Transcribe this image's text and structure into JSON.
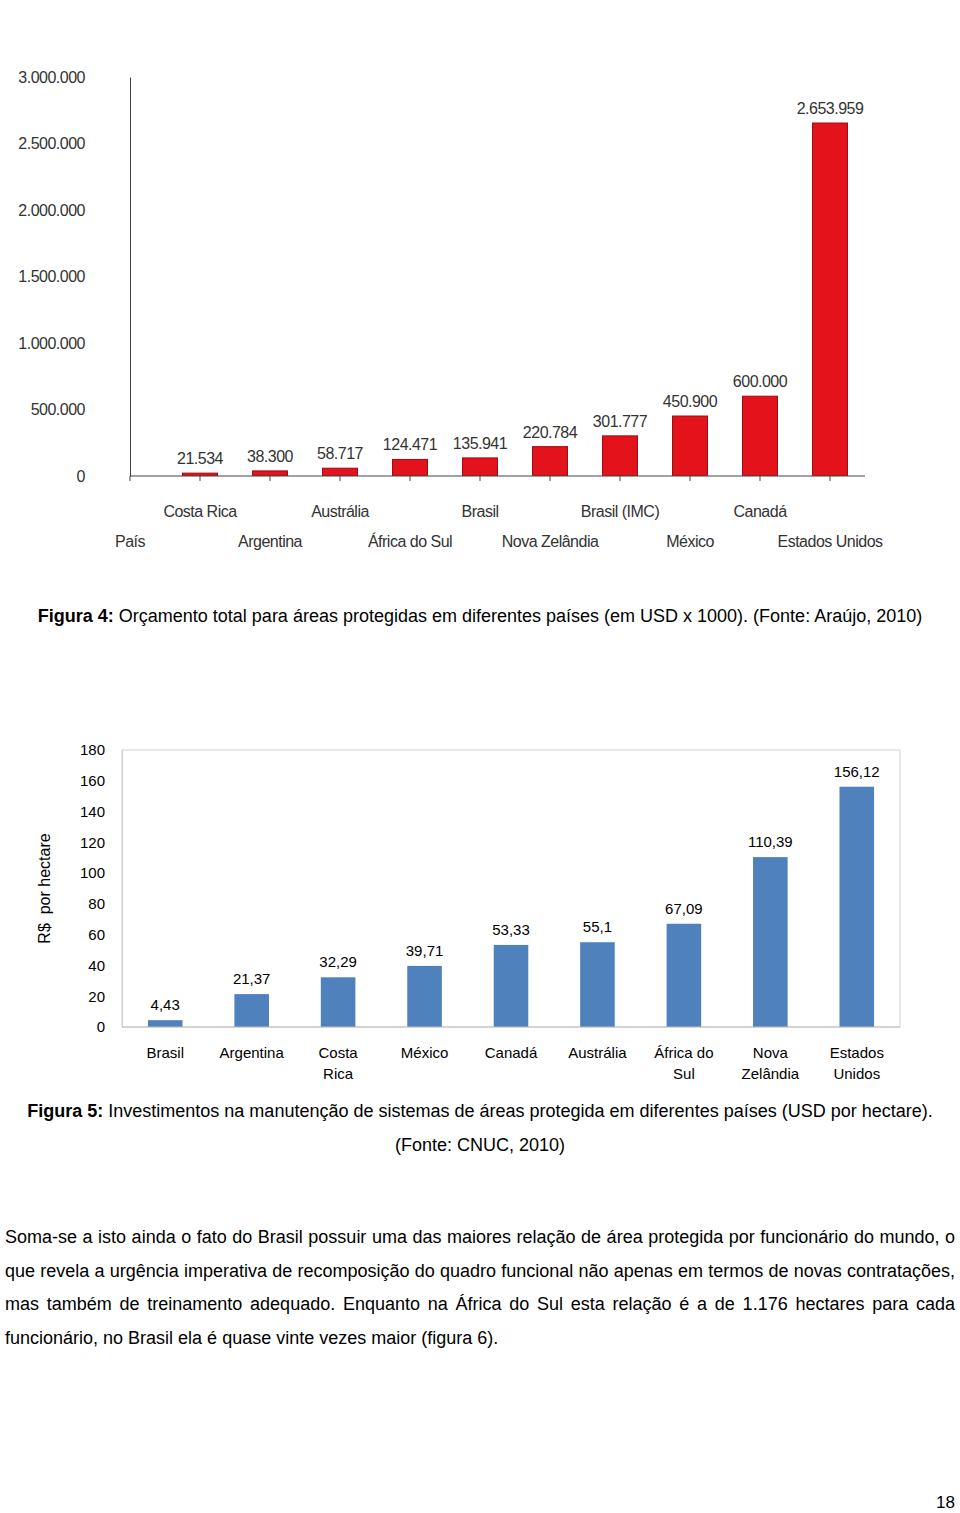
{
  "chart_data": [
    {
      "type": "bar",
      "categories": [
        "País",
        "Costa Rica",
        "Argentina",
        "Austrália",
        "África do Sul",
        "Brasil",
        "Nova Zelândia",
        "Brasil (IMC)",
        "México",
        "Canadá",
        "Estados Unidos"
      ],
      "values": [
        null,
        21534,
        38300,
        58717,
        124471,
        135941,
        220784,
        301777,
        450900,
        600000,
        2653959
      ],
      "value_labels": [
        null,
        "21.534",
        "38.300",
        "58.717",
        "124.471",
        "135.941",
        "220.784",
        "301.777",
        "450.900",
        "600.000",
        "2.653.959"
      ],
      "color": "#e3121b",
      "ylim": [
        0,
        3000000
      ],
      "yticks": [
        0,
        {
          "value": 500000,
          "label": "500.000"
        },
        {
          "value": 1000000,
          "label": "1.000.000"
        },
        {
          "value": 1500000,
          "label": "1.500.000"
        },
        {
          "value": 2000000,
          "label": "2.000.000"
        },
        {
          "value": 2500000,
          "label": "2.500.000"
        },
        {
          "value": 3000000,
          "label": "3.000.000"
        }
      ],
      "grid": false,
      "data_labels": true
    },
    {
      "type": "bar",
      "y_label": "R$  por hectare",
      "categories": [
        "Brasil",
        "Argentina",
        "Costa\nRica",
        "México",
        "Canadá",
        "Austrália",
        "África do\nSul",
        "Nova\nZelândia",
        "Estados\nUnidos"
      ],
      "values": [
        4.43,
        21.37,
        32.29,
        39.71,
        53.33,
        55.1,
        67.09,
        110.39,
        156.12
      ],
      "value_labels": [
        "4,43",
        "21,37",
        "32,29",
        "39,71",
        "53,33",
        "55,1",
        "67,09",
        "110,39",
        "156,12"
      ],
      "color": "#4f81bd",
      "ylim": [
        0,
        180
      ],
      "yticks": [
        0,
        20,
        40,
        60,
        80,
        100,
        120,
        140,
        160,
        180
      ],
      "grid": false,
      "data_labels": true
    }
  ],
  "captions": [
    {
      "label": "Figura 4:",
      "text": "Orçamento total para áreas protegidas em diferentes países (em USD x 1000). (Fonte: Araújo, 2010)"
    },
    {
      "label": "Figura 5:",
      "text": "Investimentos na manutenção de sistemas de áreas protegida em diferentes países (USD por hectare). (Fonte: CNUC, 2010)"
    }
  ],
  "paragraph": "Soma-se a isto ainda o fato do Brasil possuir uma das maiores relação de área protegida por funcionário do mundo, o que revela a urgência imperativa de recomposição do quadro funcional não apenas em termos de novas contratações, mas também de treinamento adequado. Enquanto na África do Sul esta relação é a de 1.176 hectares para cada funcionário, no Brasil ela é quase vinte vezes maior (figura 6).",
  "page_number": "18"
}
